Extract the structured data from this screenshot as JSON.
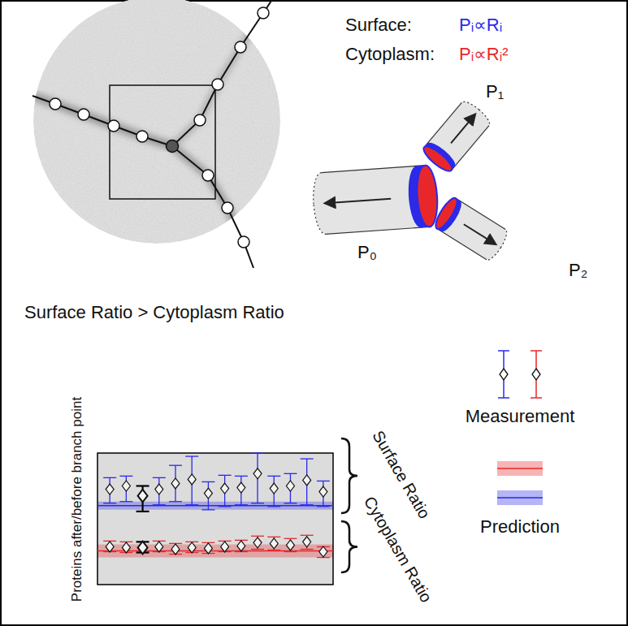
{
  "formulas": [
    {
      "label": "Surface:",
      "formula": "Pᵢ∝Rᵢ",
      "color": "#2a2ae8"
    },
    {
      "label": "Cytoplasm:",
      "formula": "Pᵢ∝Rᵢ²",
      "color": "#e8272b"
    }
  ],
  "cylinders": {
    "labels": [
      "P₀",
      "P₁",
      "P₂"
    ]
  },
  "headline": "Surface Ratio > Cytoplasm Ratio",
  "legend_texts": {
    "measurement": "Measurement",
    "prediction": "Prediction"
  },
  "chart_data": {
    "type": "scatter",
    "y_label": "Proteins after/before branch point",
    "x": [
      1,
      2,
      3,
      4,
      5,
      6,
      7,
      8,
      9,
      10,
      11,
      12,
      13,
      14
    ],
    "xlim": [
      0.25,
      14.6
    ],
    "ylim": [
      0,
      1.6
    ],
    "tick_labels": false,
    "marker": "diamond",
    "legend": "right",
    "series": [
      {
        "name": "Surface Ratio",
        "color": "#2a2ae8",
        "colors": [
          "#2a2ae8",
          "#2a2ae8",
          "#000000",
          "#2a2ae8",
          "#2a2ae8",
          "#2a2ae8",
          "#2a2ae8",
          "#2a2ae8",
          "#2a2ae8",
          "#2a2ae8",
          "#2a2ae8",
          "#2a2ae8",
          "#2a2ae8",
          "#2a2ae8"
        ],
        "values": [
          1.16,
          1.2,
          1.08,
          1.16,
          1.23,
          1.28,
          1.11,
          1.17,
          1.18,
          1.35,
          1.17,
          1.2,
          1.27,
          1.13
        ],
        "lower": [
          0.99,
          1.01,
          0.89,
          0.97,
          1.01,
          0.97,
          0.91,
          0.95,
          0.97,
          0.99,
          0.95,
          0.99,
          0.97,
          0.95
        ],
        "upper": [
          1.3,
          1.32,
          1.2,
          1.3,
          1.45,
          1.56,
          1.25,
          1.33,
          1.32,
          1.6,
          1.32,
          1.35,
          1.53,
          1.26
        ],
        "prediction": 0.96,
        "prediction_range": [
          0.91,
          1.01
        ]
      },
      {
        "name": "Cytoplasm Ratio",
        "color": "#e8272b",
        "colors": [
          "#e8272b",
          "#e8272b",
          "#000000",
          "#e8272b",
          "#e8272b",
          "#e8272b",
          "#e8272b",
          "#e8272b",
          "#e8272b",
          "#e8272b",
          "#e8272b",
          "#e8272b",
          "#e8272b",
          "#e8272b"
        ],
        "values": [
          0.46,
          0.45,
          0.45,
          0.46,
          0.43,
          0.45,
          0.44,
          0.46,
          0.47,
          0.51,
          0.5,
          0.48,
          0.52,
          0.4
        ],
        "lower": [
          0.4,
          0.39,
          0.39,
          0.4,
          0.37,
          0.39,
          0.38,
          0.4,
          0.4,
          0.43,
          0.42,
          0.4,
          0.43,
          0.33
        ],
        "upper": [
          0.53,
          0.52,
          0.52,
          0.53,
          0.5,
          0.52,
          0.51,
          0.53,
          0.54,
          0.59,
          0.58,
          0.56,
          0.6,
          0.46
        ],
        "prediction": 0.41,
        "prediction_range": [
          0.33,
          0.49
        ]
      }
    ]
  }
}
